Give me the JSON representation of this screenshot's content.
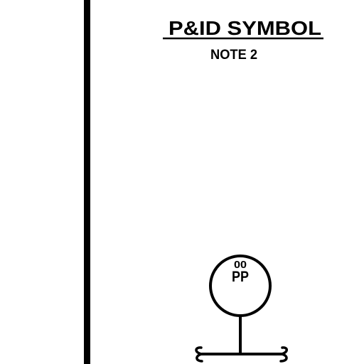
{
  "title": "P&ID SYMBOL",
  "note": "NOTE 2",
  "instrument": {
    "tag_top": "00",
    "tag_bottom": "PP"
  },
  "colors": {
    "line": "#000000",
    "background": "#ffffff"
  }
}
